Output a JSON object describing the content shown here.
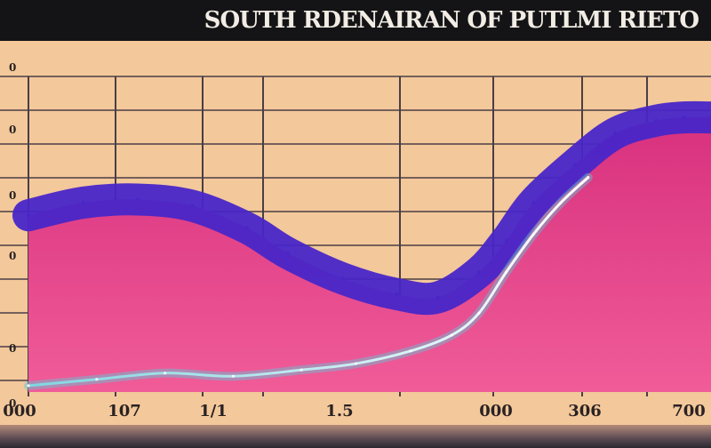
{
  "header": {
    "title": "SOUTH RDENAIRAN OF PUTLMI RIETO"
  },
  "chart_data": {
    "type": "area",
    "title": "SOUTH RDENAIRAN OF PUTLMI RIETO",
    "xlabel": "",
    "ylabel": "",
    "grid": true,
    "x_tick_labels": [
      "000",
      "107",
      "1/1",
      "1.5",
      "000",
      "306",
      "700"
    ],
    "y_tick_labels": [
      "0",
      "0",
      "0",
      "0",
      "0",
      "0"
    ],
    "xlim": [
      0,
      100
    ],
    "ylim": [
      0,
      100
    ],
    "series": [
      {
        "name": "",
        "color": "#4826c8",
        "x": [
          0,
          8,
          16,
          24,
          32,
          38,
          46,
          54,
          60,
          66,
          70,
          74,
          80,
          86,
          92,
          96,
          100
        ],
        "y": [
          56,
          60,
          61,
          59,
          52,
          44,
          36,
          31,
          30,
          38,
          48,
          60,
          72,
          82,
          86,
          87,
          87
        ]
      },
      {
        "name": "",
        "color": "#dce4f2",
        "x": [
          0,
          10,
          20,
          30,
          40,
          48,
          56,
          62,
          66,
          70,
          74,
          78,
          82
        ],
        "y": [
          2,
          4,
          6,
          5,
          7,
          9,
          13,
          18,
          25,
          38,
          50,
          60,
          68
        ]
      }
    ]
  },
  "colors": {
    "background": "#f3c89a",
    "grid": "#4a3e46",
    "area_fill": "#e83a86",
    "area_top": "#4826c8",
    "line": "#dce4f2"
  }
}
